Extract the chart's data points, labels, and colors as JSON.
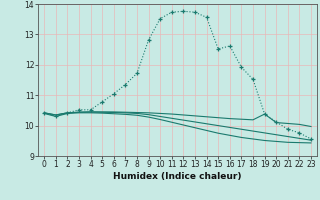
{
  "xlabel": "Humidex (Indice chaleur)",
  "bg_color": "#c8eae4",
  "grid_color": "#e8b8b8",
  "line_color": "#1a7a6e",
  "xlim": [
    -0.5,
    23.5
  ],
  "ylim": [
    9,
    14
  ],
  "yticks": [
    9,
    10,
    11,
    12,
    13,
    14
  ],
  "xticks": [
    0,
    1,
    2,
    3,
    4,
    5,
    6,
    7,
    8,
    9,
    10,
    11,
    12,
    13,
    14,
    15,
    16,
    17,
    18,
    19,
    20,
    21,
    22,
    23
  ],
  "curve1_x": [
    0,
    1,
    2,
    3,
    4,
    5,
    6,
    7,
    8,
    9,
    10,
    11,
    12,
    13,
    14,
    15,
    16,
    17,
    18,
    19,
    20,
    21,
    22,
    23
  ],
  "curve1_y": [
    10.42,
    10.32,
    10.42,
    10.52,
    10.52,
    10.78,
    11.05,
    11.35,
    11.72,
    12.82,
    13.52,
    13.73,
    13.76,
    13.73,
    13.56,
    12.52,
    12.62,
    11.92,
    11.52,
    10.38,
    10.12,
    9.88,
    9.76,
    9.56
  ],
  "curve2_x": [
    0,
    1,
    2,
    3,
    4,
    5,
    6,
    7,
    8,
    9,
    10,
    11,
    12,
    13,
    14,
    15,
    16,
    17,
    18,
    19,
    20,
    21,
    22,
    23
  ],
  "curve2_y": [
    10.42,
    10.35,
    10.42,
    10.44,
    10.45,
    10.45,
    10.45,
    10.44,
    10.43,
    10.42,
    10.4,
    10.38,
    10.35,
    10.32,
    10.29,
    10.26,
    10.23,
    10.21,
    10.19,
    10.38,
    10.1,
    10.07,
    10.04,
    9.97
  ],
  "curve3_x": [
    0,
    1,
    2,
    3,
    4,
    5,
    6,
    7,
    8,
    9,
    10,
    11,
    12,
    13,
    14,
    15,
    16,
    17,
    18,
    19,
    20,
    21,
    22,
    23
  ],
  "curve3_y": [
    10.42,
    10.35,
    10.42,
    10.44,
    10.45,
    10.44,
    10.43,
    10.42,
    10.4,
    10.36,
    10.3,
    10.24,
    10.18,
    10.12,
    10.06,
    10.0,
    9.94,
    9.88,
    9.82,
    9.76,
    9.7,
    9.64,
    9.58,
    9.52
  ],
  "curve4_x": [
    0,
    1,
    2,
    3,
    4,
    5,
    6,
    7,
    8,
    9,
    10,
    11,
    12,
    13,
    14,
    15,
    16,
    17,
    18,
    19,
    20,
    21,
    22,
    23
  ],
  "curve4_y": [
    10.4,
    10.3,
    10.4,
    10.42,
    10.42,
    10.41,
    10.39,
    10.37,
    10.34,
    10.28,
    10.2,
    10.11,
    10.02,
    9.93,
    9.84,
    9.75,
    9.68,
    9.61,
    9.56,
    9.51,
    9.48,
    9.45,
    9.44,
    9.43
  ]
}
